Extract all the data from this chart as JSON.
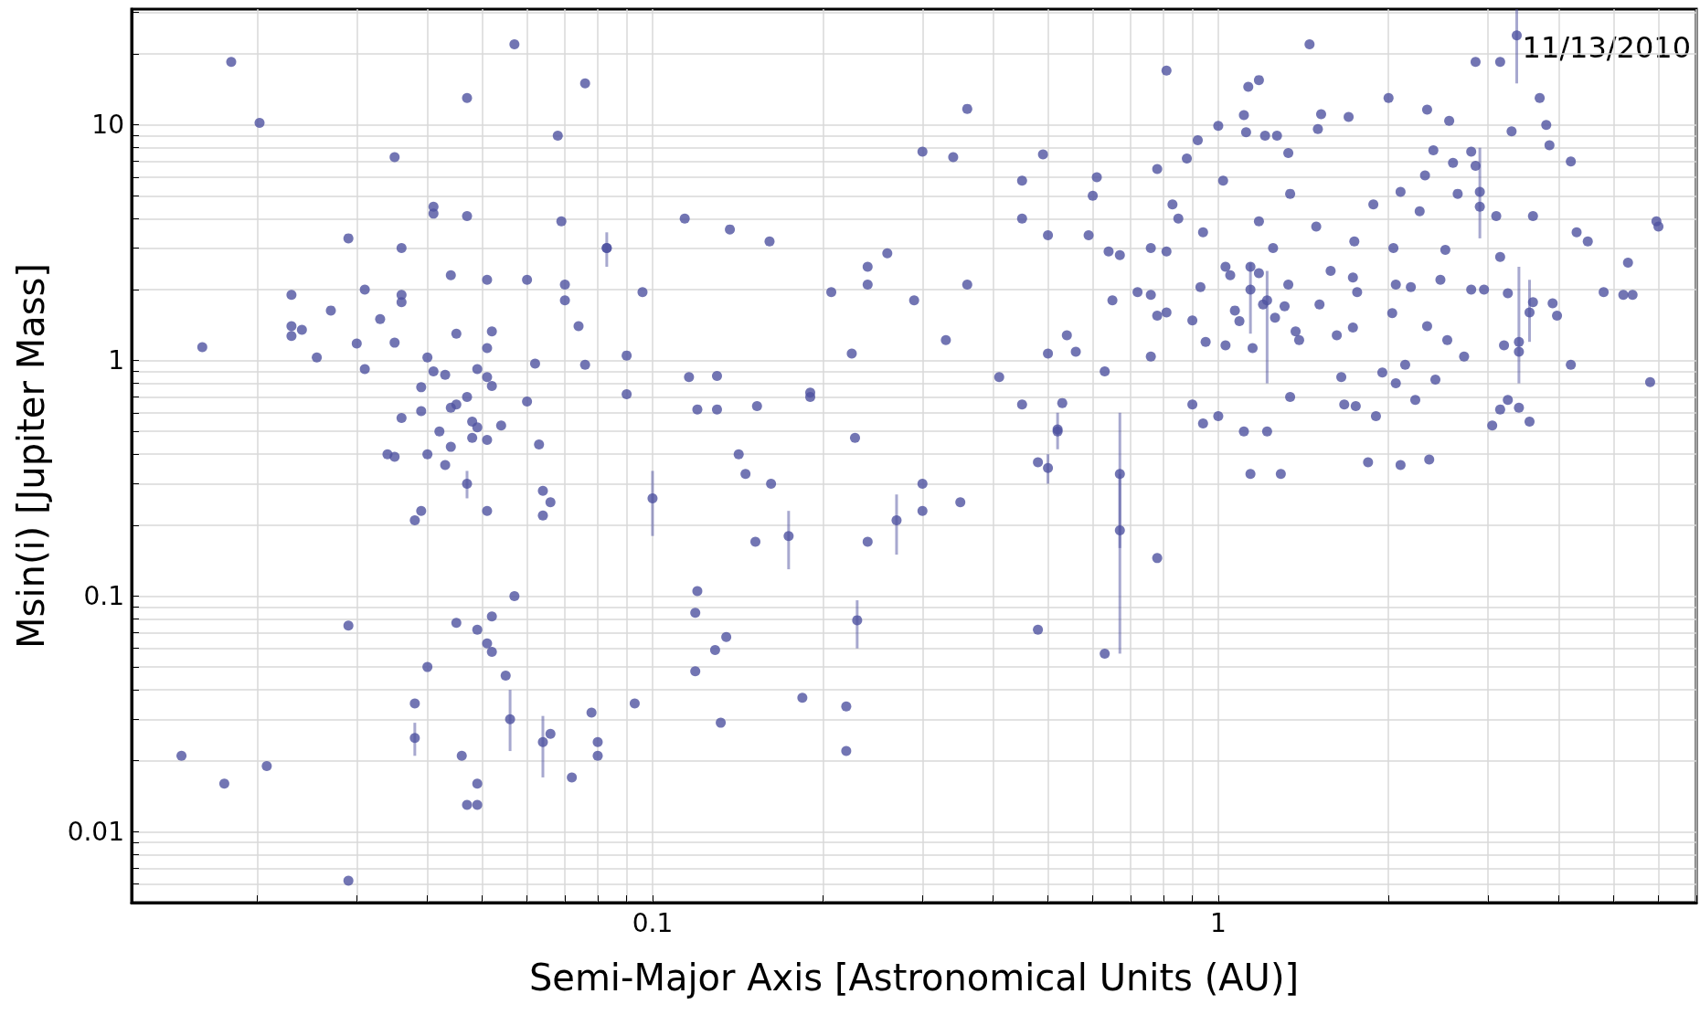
{
  "chart_data": {
    "type": "scatter",
    "xlabel": "Semi-Major Axis [Astronomical Units (AU)]",
    "ylabel": "Msin(i) [Jupiter Mass]",
    "annotations": [
      "11/13/2010"
    ],
    "log": "xy",
    "grid": true,
    "marker": "circle",
    "xlim": [
      0.012,
      7
    ],
    "ylim": [
      0.005,
      31
    ],
    "xticks": [
      {
        "value": 0.02,
        "label": null
      },
      {
        "value": 0.03,
        "label": null
      },
      {
        "value": 0.04,
        "label": null
      },
      {
        "value": 0.05,
        "label": null
      },
      {
        "value": 0.06,
        "label": null
      },
      {
        "value": 0.07,
        "label": null
      },
      {
        "value": 0.08,
        "label": null
      },
      {
        "value": 0.09,
        "label": null
      },
      0.1,
      {
        "value": 0.2,
        "label": null
      },
      {
        "value": 0.3,
        "label": null
      },
      {
        "value": 0.4,
        "label": null
      },
      {
        "value": 0.5,
        "label": null
      },
      {
        "value": 0.6,
        "label": null
      },
      {
        "value": 0.7,
        "label": null
      },
      {
        "value": 0.8,
        "label": null
      },
      {
        "value": 0.9,
        "label": null
      },
      1,
      {
        "value": 2,
        "label": null
      },
      {
        "value": 3,
        "label": null
      },
      {
        "value": 4,
        "label": null
      },
      {
        "value": 5,
        "label": null
      },
      {
        "value": 6,
        "label": null
      },
      {
        "value": 7,
        "label": null
      }
    ],
    "yticks": [
      {
        "value": 0.006,
        "label": null
      },
      {
        "value": 0.007,
        "label": null
      },
      {
        "value": 0.008,
        "label": null
      },
      {
        "value": 0.009,
        "label": null
      },
      0.01,
      {
        "value": 0.02,
        "label": null
      },
      {
        "value": 0.03,
        "label": null
      },
      {
        "value": 0.04,
        "label": null
      },
      {
        "value": 0.05,
        "label": null
      },
      {
        "value": 0.06,
        "label": null
      },
      {
        "value": 0.07,
        "label": null
      },
      {
        "value": 0.08,
        "label": null
      },
      {
        "value": 0.09,
        "label": null
      },
      0.1,
      {
        "value": 0.2,
        "label": null
      },
      {
        "value": 0.3,
        "label": null
      },
      {
        "value": 0.4,
        "label": null
      },
      {
        "value": 0.5,
        "label": null
      },
      {
        "value": 0.6,
        "label": null
      },
      {
        "value": 0.7,
        "label": null
      },
      {
        "value": 0.8,
        "label": null
      },
      {
        "value": 0.9,
        "label": null
      },
      1,
      {
        "value": 2,
        "label": null
      },
      {
        "value": 3,
        "label": null
      },
      {
        "value": 4,
        "label": null
      },
      {
        "value": 5,
        "label": null
      },
      {
        "value": 6,
        "label": null
      },
      {
        "value": 7,
        "label": null
      },
      {
        "value": 8,
        "label": null
      },
      {
        "value": 9,
        "label": null
      },
      10,
      {
        "value": 20,
        "label": null
      },
      {
        "value": 30,
        "label": null
      }
    ],
    "series": [
      {
        "color": "#4f52a0",
        "x": [
          0.0147,
          0.0175,
          0.0208,
          0.018,
          0.0202,
          0.016,
          0.029,
          0.029,
          0.029,
          0.023,
          0.023,
          0.023,
          0.024,
          0.0255,
          0.027,
          0.031,
          0.03,
          0.031,
          0.033,
          0.035,
          0.036,
          0.036,
          0.036,
          0.035,
          0.034,
          0.035,
          0.036,
          0.038,
          0.039,
          0.038,
          0.04,
          0.041,
          0.041,
          0.047,
          0.047,
          0.057,
          0.04,
          0.041,
          0.039,
          0.039,
          0.04,
          0.042,
          0.043,
          0.044,
          0.045,
          0.044,
          0.044,
          0.043,
          0.045,
          0.047,
          0.048,
          0.049,
          0.049,
          0.048,
          0.051,
          0.051,
          0.051,
          0.052,
          0.051,
          0.051,
          0.052,
          0.054,
          0.045,
          0.049,
          0.051,
          0.052,
          0.052,
          0.055,
          0.057,
          0.046,
          0.047,
          0.049,
          0.049,
          0.06,
          0.06,
          0.062,
          0.063,
          0.064,
          0.064,
          0.066,
          0.066,
          0.068,
          0.069,
          0.07,
          0.07,
          0.074,
          0.076,
          0.076,
          0.072,
          0.078,
          0.08,
          0.08,
          0.083,
          0.09,
          0.09,
          0.093,
          0.096,
          0.114,
          0.116,
          0.12,
          0.12,
          0.119,
          0.119,
          0.13,
          0.13,
          0.129,
          0.135,
          0.132,
          0.137,
          0.142,
          0.146,
          0.153,
          0.152,
          0.161,
          0.162,
          0.184,
          0.19,
          0.19,
          0.207,
          0.22,
          0.22,
          0.225,
          0.228,
          0.24,
          0.24,
          0.24,
          0.26,
          0.29,
          0.3,
          0.3,
          0.3,
          0.33,
          0.34,
          0.36,
          0.36,
          0.35,
          0.41,
          0.45,
          0.45,
          0.45,
          0.48,
          0.48,
          0.49,
          0.5,
          0.5,
          0.52,
          0.53,
          0.54,
          0.56,
          0.59,
          0.6,
          0.61,
          0.63,
          0.63,
          0.64,
          0.65,
          0.67,
          0.72,
          0.76,
          0.76,
          0.76,
          0.78,
          0.78,
          0.78,
          0.81,
          0.81,
          0.81,
          0.83,
          0.85,
          0.88,
          0.9,
          0.9,
          0.92,
          0.93,
          0.94,
          0.94,
          0.95,
          1.0,
          1.0,
          1.02,
          1.03,
          1.03,
          1.05,
          1.07,
          1.09,
          1.11,
          1.11,
          1.12,
          1.13,
          1.14,
          1.14,
          1.15,
          1.18,
          1.18,
          1.18,
          1.2,
          1.21,
          1.22,
          1.25,
          1.26,
          1.27,
          1.29,
          1.31,
          1.33,
          1.34,
          1.37,
          1.34,
          1.33,
          1.39,
          1.49,
          1.5,
          1.45,
          1.52,
          1.51,
          1.58,
          1.62,
          1.65,
          1.67,
          1.7,
          1.73,
          1.74,
          1.75,
          1.73,
          1.76,
          1.84,
          1.88,
          1.9,
          1.95,
          2.0,
          2.03,
          2.04,
          2.06,
          2.1,
          2.06,
          2.1,
          2.14,
          2.19,
          2.23,
          2.27,
          2.32,
          2.34,
          2.34,
          2.36,
          2.4,
          2.42,
          2.47,
          2.52,
          2.54,
          2.56,
          2.6,
          2.65,
          2.72,
          2.8,
          2.8,
          2.85,
          2.95,
          2.9,
          2.85,
          3.05,
          3.1,
          3.15,
          3.15,
          3.2,
          3.15,
          3.25,
          3.25,
          3.3,
          3.4,
          3.4,
          3.55,
          3.6,
          3.6,
          3.7,
          3.8,
          3.85,
          3.9,
          3.97,
          4.2,
          4.2,
          4.3,
          4.5,
          4.8,
          5.2,
          5.3,
          5.4,
          5.8,
          5.95,
          6.0
        ],
        "values": [
          0.021,
          0.016,
          0.019,
          18.5,
          10.2,
          1.14,
          0.0062,
          0.075,
          3.3,
          1.9,
          1.4,
          1.27,
          1.35,
          1.03,
          1.63,
          2.0,
          1.18,
          0.92,
          1.5,
          7.3,
          3.0,
          1.9,
          1.77,
          1.19,
          0.4,
          0.39,
          0.57,
          0.21,
          0.23,
          0.035,
          0.05,
          4.5,
          4.2,
          4.1,
          13,
          22,
          1.03,
          0.9,
          0.77,
          0.61,
          0.4,
          0.5,
          0.87,
          2.3,
          1.3,
          0.63,
          0.43,
          0.36,
          0.65,
          0.7,
          0.55,
          0.52,
          0.92,
          0.47,
          0.85,
          1.13,
          0.46,
          1.33,
          2.2,
          0.23,
          0.78,
          0.53,
          0.077,
          0.072,
          0.063,
          0.082,
          0.058,
          0.046,
          0.1,
          0.021,
          0.013,
          0.016,
          0.013,
          2.2,
          0.67,
          0.97,
          0.44,
          0.28,
          0.22,
          0.25,
          0.026,
          9,
          3.9,
          1.8,
          2.1,
          1.4,
          0.96,
          15,
          0.017,
          0.032,
          0.024,
          0.021,
          3.0,
          1.05,
          0.72,
          0.035,
          1.95,
          4.0,
          0.85,
          0.62,
          0.105,
          0.085,
          0.048,
          0.62,
          0.86,
          0.059,
          0.067,
          0.029,
          3.6,
          0.4,
          0.33,
          0.64,
          0.17,
          3.2,
          0.3,
          0.037,
          0.7,
          0.73,
          1.95,
          0.034,
          0.022,
          1.07,
          0.47,
          2.1,
          2.5,
          0.17,
          2.85,
          1.8,
          7.7,
          0.23,
          0.3,
          1.22,
          7.3,
          11.7,
          2.1,
          0.25,
          0.85,
          4.0,
          5.8,
          0.65,
          0.072,
          0.37,
          7.5,
          3.4,
          1.07,
          0.51,
          0.66,
          1.28,
          1.09,
          3.4,
          5.0,
          6.0,
          0.9,
          0.057,
          2.9,
          1.8,
          2.8,
          1.95,
          1.9,
          1.04,
          3.0,
          6.5,
          1.55,
          0.145,
          17,
          1.6,
          2.9,
          4.6,
          4.0,
          7.2,
          1.48,
          0.65,
          8.6,
          2.05,
          3.5,
          0.54,
          1.2,
          9.9,
          0.58,
          5.8,
          2.5,
          1.16,
          2.3,
          1.63,
          1.47,
          11,
          0.5,
          9.3,
          14.5,
          2.5,
          0.33,
          1.13,
          2.35,
          15.5,
          3.9,
          1.73,
          9,
          0.5,
          3.0,
          1.52,
          9,
          0.33,
          1.7,
          2.1,
          5.1,
          1.33,
          0.7,
          7.6,
          1.22,
          3.7,
          9.6,
          22,
          11.1,
          1.73,
          2.4,
          1.28,
          0.85,
          0.65,
          10.8,
          2.25,
          3.2,
          0.64,
          1.38,
          1.95,
          0.37,
          4.6,
          0.58,
          0.89,
          13,
          1.59,
          3.0,
          2.1,
          0.36,
          0.8,
          5.2,
          0.96,
          2.05,
          0.68,
          4.3,
          6.1,
          11.6,
          1.4,
          0.38,
          7.8,
          0.83,
          2.2,
          2.95,
          1.22,
          10.4,
          6.9,
          5.1,
          1.04,
          7.7,
          2.0,
          6.7,
          2.0,
          4.5,
          18.5,
          0.53,
          4.1,
          2.75,
          18.5,
          1.16,
          0.62,
          0.68,
          1.93,
          9.4,
          1.09,
          0.63,
          0.55,
          1.77,
          4.1,
          13,
          10,
          8.2,
          1.75,
          1.55,
          7.0,
          0.96,
          3.5,
          3.2,
          1.95,
          1.9,
          2.6,
          1.9,
          0.81,
          3.9,
          3.7
        ]
      },
      {
        "color": "#4f52a0",
        "x": [
          0.1,
          0.67,
          0.67,
          0.174,
          0.27,
          0.23,
          0.056,
          0.064,
          0.038,
          0.047,
          0.083,
          3.37,
          2.9,
          1.22,
          1.14,
          0.52,
          0.5,
          3.4,
          3.55
        ],
        "values": [
          0.26,
          0.33,
          0.19,
          0.18,
          0.21,
          0.079,
          0.03,
          0.024,
          0.025,
          0.3,
          3.0,
          24,
          5.2,
          1.8,
          2.0,
          0.5,
          0.35,
          1.2,
          1.6
        ],
        "errors": [
          [
            0.18,
            0.34
          ],
          [
            0.16,
            0.6
          ],
          [
            0.057,
            0.33
          ],
          [
            0.13,
            0.23
          ],
          [
            0.15,
            0.27
          ],
          [
            0.06,
            0.096
          ],
          [
            0.022,
            0.04
          ],
          [
            0.017,
            0.031
          ],
          [
            0.021,
            0.029
          ],
          [
            0.26,
            0.34
          ],
          [
            2.5,
            3.5
          ],
          [
            15,
            31
          ],
          [
            3.3,
            8
          ],
          [
            0.8,
            2.4
          ],
          [
            1.3,
            2.6
          ],
          [
            0.42,
            0.6
          ],
          [
            0.3,
            0.4
          ],
          [
            0.8,
            2.5
          ],
          [
            1.2,
            2.2
          ]
        ]
      }
    ]
  }
}
